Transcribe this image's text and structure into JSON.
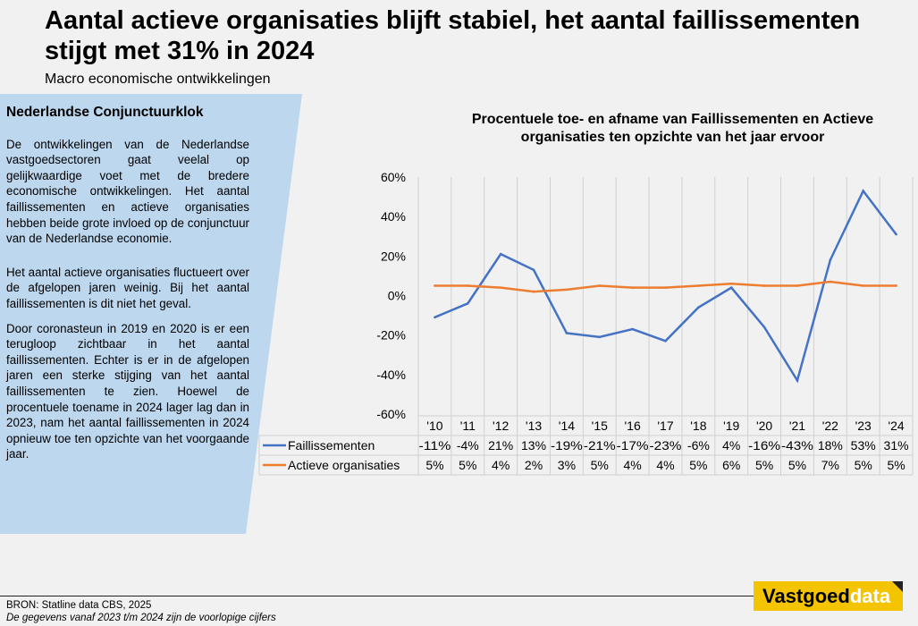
{
  "title": "Aantal actieve organisaties blijft stabiel, het aantal faillissementen stijgt met 31% in 2024",
  "subtitle": "Macro economische ontwikkelingen",
  "panel": {
    "heading": "Nederlandse Conjunctuurklok",
    "paragraphs": [
      "De ontwikkelingen van de Nederlandse vastgoedsectoren gaat veelal op gelijkwaardige voet met de bredere economische ontwikkelingen. Het aantal faillissementen en actieve organisaties hebben beide grote invloed op de conjunctuur van de Nederlandse economie.",
      "Het aantal actieve organisaties fluctueert over de afgelopen jaren weinig. Bij het aantal faillissementen is dit niet het geval.",
      "Door coronasteun in 2019 en 2020 is er een terugloop zichtbaar in het aantal faillissementen. Echter is er in de afgelopen jaren een sterke stijging van het aantal faillissementen te zien. Hoewel de procentuele toename in 2024 lager lag dan in 2023, nam het aantal faillissementen in 2024 opnieuw toe ten opzichte van het voorgaande jaar."
    ],
    "color": "#bdd7ee"
  },
  "chart_data": {
    "type": "line",
    "title": "Procentuele toe- en afname van Faillissementen en Actieve organisaties ten opzichte van het jaar ervoor",
    "categories": [
      "'10",
      "'11",
      "'12",
      "'13",
      "'14",
      "'15",
      "'16",
      "'17",
      "'18",
      "'19",
      "'20",
      "'21",
      "'22",
      "'23",
      "'24"
    ],
    "ylim": [
      -60,
      60
    ],
    "yticks": [
      "60%",
      "40%",
      "20%",
      "0%",
      "-20%",
      "-40%",
      "-60%"
    ],
    "ytick_values": [
      60,
      40,
      20,
      0,
      -20,
      -40,
      -60
    ],
    "grid": "vertical",
    "legend": "data-table-below",
    "series": [
      {
        "name": "Faillissementen",
        "color": "#4472c4",
        "values": [
          -11,
          -4,
          21,
          13,
          -19,
          -21,
          -17,
          -23,
          -6,
          4,
          -16,
          -43,
          18,
          53,
          31
        ],
        "labels": [
          "-11%",
          "-4%",
          "21%",
          "13%",
          "-19%",
          "-21%",
          "-17%",
          "-23%",
          "-6%",
          "4%",
          "-16%",
          "-43%",
          "18%",
          "53%",
          "31%"
        ]
      },
      {
        "name": "Actieve organisaties",
        "color": "#ed7d31",
        "values": [
          5,
          5,
          4,
          2,
          3,
          5,
          4,
          4,
          5,
          6,
          5,
          5,
          7,
          5,
          5
        ],
        "labels": [
          "5%",
          "5%",
          "4%",
          "2%",
          "3%",
          "5%",
          "4%",
          "4%",
          "5%",
          "6%",
          "5%",
          "5%",
          "7%",
          "5%",
          "5%"
        ]
      }
    ]
  },
  "footer": {
    "source": "BRON: Statline data CBS, 2025",
    "note": "De gegevens vanaf 2023 t/m 2024 zijn de voorlopige cijfers",
    "logo_main": "Vastgoed",
    "logo_accent": "data"
  }
}
